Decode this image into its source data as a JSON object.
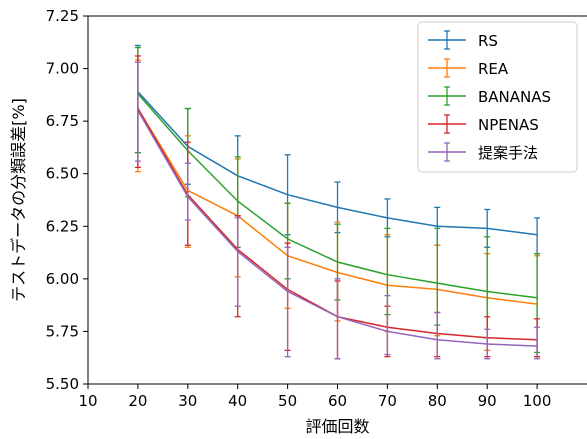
{
  "chart_data": {
    "type": "line",
    "title": "",
    "xlabel": "評価回数",
    "ylabel": "テストデータの分類誤差[%]",
    "xlim": [
      10,
      110
    ],
    "ylim": [
      5.5,
      7.25
    ],
    "x_ticks": [
      "10",
      "20",
      "30",
      "40",
      "50",
      "60",
      "70",
      "80",
      "90",
      "100"
    ],
    "x_tick_values": [
      10,
      20,
      30,
      40,
      50,
      60,
      70,
      80,
      90,
      100
    ],
    "y_ticks": [
      "5.50",
      "5.75",
      "6.00",
      "6.25",
      "6.50",
      "6.75",
      "7.00",
      "7.25"
    ],
    "y_tick_values": [
      5.5,
      5.75,
      6.0,
      6.25,
      6.5,
      6.75,
      7.0,
      7.25
    ],
    "grid": false,
    "legend_position": "top-right",
    "x": [
      20,
      30,
      40,
      50,
      60,
      70,
      80,
      90,
      100
    ],
    "series": [
      {
        "name": "RS",
        "color": "#1f77b4",
        "values": [
          6.89,
          6.63,
          6.49,
          6.4,
          6.34,
          6.29,
          6.25,
          6.24,
          6.21
        ],
        "err_low": [
          6.6,
          6.45,
          6.3,
          6.21,
          6.22,
          6.2,
          6.16,
          6.15,
          6.12
        ],
        "err_high": [
          7.11,
          6.81,
          6.68,
          6.59,
          6.46,
          6.38,
          6.34,
          6.33,
          6.29
        ]
      },
      {
        "name": "REA",
        "color": "#ff7f0e",
        "values": [
          6.81,
          6.42,
          6.3,
          6.11,
          6.03,
          5.97,
          5.95,
          5.91,
          5.88
        ],
        "err_low": [
          6.51,
          6.15,
          6.01,
          5.86,
          5.8,
          5.75,
          5.73,
          5.66,
          5.63
        ],
        "err_high": [
          7.04,
          6.68,
          6.57,
          6.36,
          6.27,
          6.21,
          6.16,
          6.12,
          6.11
        ]
      },
      {
        "name": "BANANAS",
        "color": "#2ca02c",
        "values": [
          6.88,
          6.61,
          6.37,
          6.19,
          6.08,
          6.02,
          5.98,
          5.94,
          5.91
        ],
        "err_low": [
          6.6,
          6.39,
          6.15,
          6.0,
          5.9,
          5.83,
          5.78,
          5.72,
          5.65
        ],
        "err_high": [
          7.1,
          6.81,
          6.58,
          6.36,
          6.26,
          6.24,
          6.24,
          6.2,
          6.12
        ]
      },
      {
        "name": "NPENAS",
        "color": "#d62728",
        "values": [
          6.81,
          6.4,
          6.14,
          5.95,
          5.82,
          5.77,
          5.74,
          5.72,
          5.71
        ],
        "err_low": [
          6.53,
          6.16,
          5.82,
          5.66,
          5.62,
          5.63,
          5.63,
          5.63,
          5.63
        ],
        "err_high": [
          7.06,
          6.65,
          6.3,
          6.17,
          5.99,
          5.87,
          5.84,
          5.82,
          5.81
        ]
      },
      {
        "name": "提案手法",
        "color": "#9467bd",
        "values": [
          6.8,
          6.39,
          6.13,
          5.94,
          5.82,
          5.75,
          5.71,
          5.69,
          5.68
        ],
        "err_low": [
          6.56,
          6.28,
          5.87,
          5.63,
          5.62,
          5.64,
          5.62,
          5.62,
          5.62
        ],
        "err_high": [
          7.03,
          6.55,
          6.29,
          6.15,
          6.0,
          5.92,
          5.84,
          5.76,
          5.77
        ]
      }
    ]
  }
}
